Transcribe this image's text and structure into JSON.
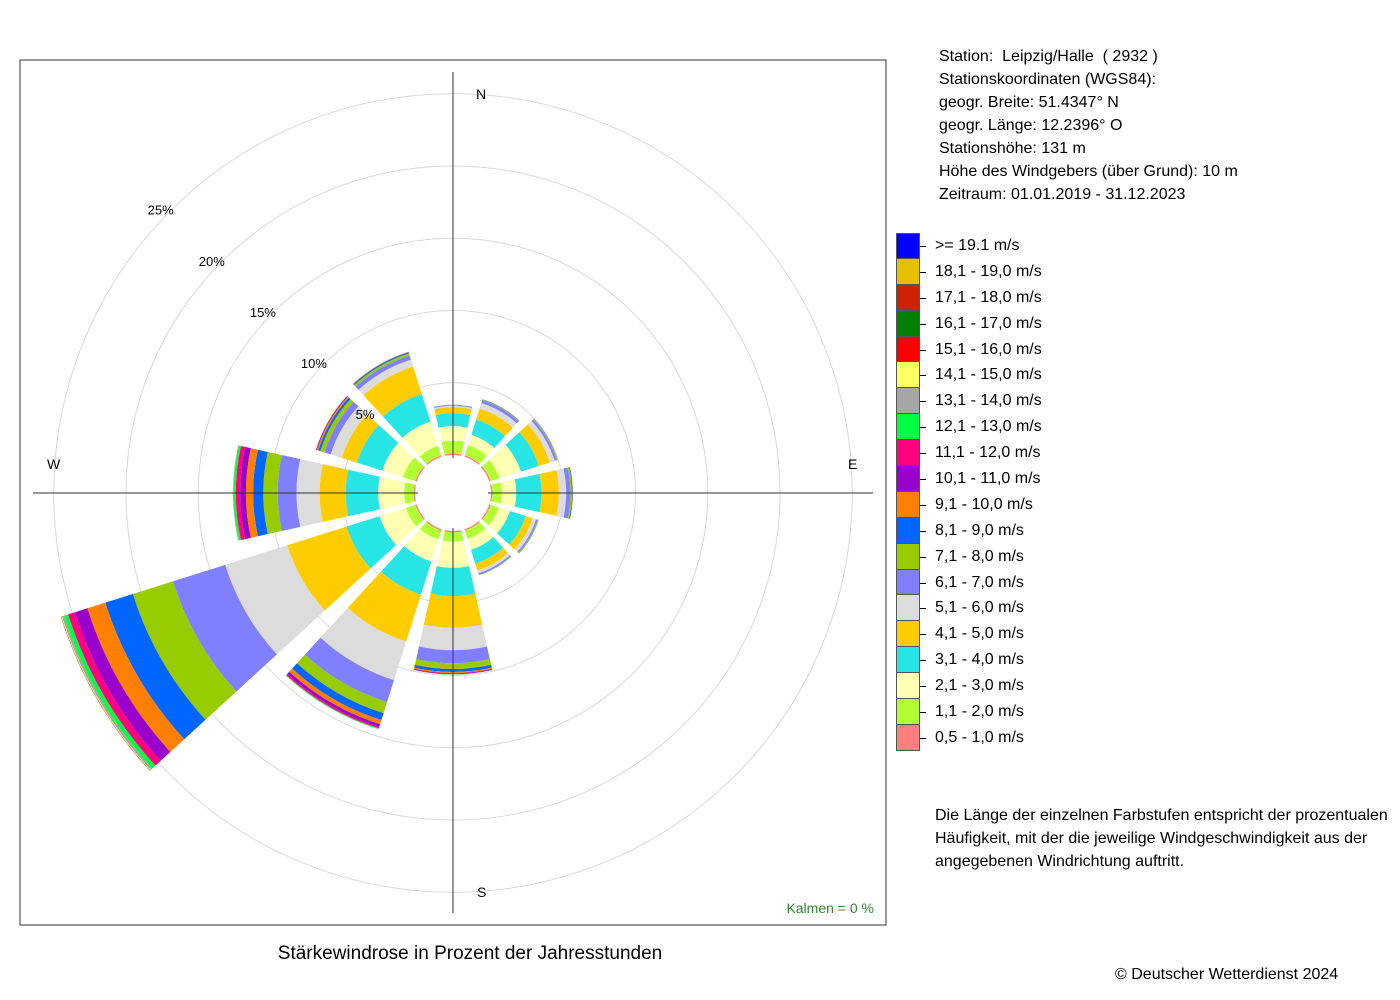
{
  "title": "Stärkewindrose in Prozent der Jahresstunden",
  "station_info": [
    "Station:  Leipzig/Halle  ( 2932 )",
    "Stationskoordinaten (WGS84):",
    "geogr. Breite: 51.4347° N",
    "geogr. Länge: 12.2396° O",
    "Stationshöhe: 131 m",
    "Höhe des Windgebers (über Grund): 10 m",
    "Zeitraum: 01.01.2019 - 31.12.2023"
  ],
  "note": "Die Länge der einzelnen Farbstufen entspricht der prozentualen Häufigkeit, mit der die jeweilige Windgeschwindigkeit aus der angegebenen Windrichtung auftritt.",
  "copyright": "© Deutscher Wetterdienst  2024",
  "calm": "Kalmen  =  0 %",
  "compass": {
    "n": "N",
    "e": "E",
    "s": "S",
    "w": "W"
  },
  "chart_data": {
    "type": "wind-rose",
    "radial_unit": "%",
    "radial_ticks": [
      5,
      10,
      15,
      20,
      25
    ],
    "radial_tick_labels": [
      "5%",
      "10%",
      "15%",
      "20%",
      "25%"
    ],
    "directions_deg": [
      0,
      30,
      60,
      90,
      120,
      150,
      180,
      210,
      240,
      270,
      300,
      330
    ],
    "speed_classes": [
      {
        "label": "0,5 - 1,0 m/s",
        "color": "#ff7f7f"
      },
      {
        "label": "1,1 - 2,0 m/s",
        "color": "#b2ff33"
      },
      {
        "label": "2,1 - 3,0 m/s",
        "color": "#ffffb2"
      },
      {
        "label": "3,1 - 4,0 m/s",
        "color": "#28e5e5"
      },
      {
        "label": "4,1 - 5,0 m/s",
        "color": "#ffcc00"
      },
      {
        "label": "5,1 - 6,0 m/s",
        "color": "#dcdcdc"
      },
      {
        "label": "6,1 - 7,0 m/s",
        "color": "#8080ff"
      },
      {
        "label": "7,1 - 8,0 m/s",
        "color": "#99cc00"
      },
      {
        "label": "8,1 - 9,0 m/s",
        "color": "#0066ff"
      },
      {
        "label": "9,1 - 10,0 m/s",
        "color": "#ff8000"
      },
      {
        "label": "10,1 - 11,0 m/s",
        "color": "#9900cc"
      },
      {
        "label": "11,1 - 12,0 m/s",
        "color": "#ff0080"
      },
      {
        "label": "12,1 - 13,0 m/s",
        "color": "#00ff40"
      },
      {
        "label": "13,1 - 14,0 m/s",
        "color": "#a6a6a6"
      },
      {
        "label": "14,1 - 15,0 m/s",
        "color": "#ffff66"
      },
      {
        "label": "15,1 - 16,0 m/s",
        "color": "#ff0000"
      },
      {
        "label": "16,1 - 17,0 m/s",
        "color": "#008000"
      },
      {
        "label": "17,1 - 18,0 m/s",
        "color": "#cc2200"
      },
      {
        "label": "18,1 - 19,0 m/s",
        "color": "#e6bf00"
      },
      {
        "label": ">= 19.1 m/s",
        "color": "#0000ff"
      }
    ],
    "frequencies_pct": [
      [
        0.1,
        0.9,
        1.0,
        0.9,
        0.4,
        0.1,
        0.05,
        0.02,
        0.01,
        0.0,
        0.0,
        0.0,
        0.0,
        0.0,
        0.0,
        0.0,
        0.0,
        0.0,
        0.0,
        0.0
      ],
      [
        0.1,
        0.75,
        0.75,
        1.1,
        0.8,
        0.4,
        0.2,
        0.05,
        0.02,
        0.01,
        0.0,
        0.0,
        0.0,
        0.0,
        0.0,
        0.0,
        0.0,
        0.0,
        0.0,
        0.0
      ],
      [
        0.1,
        0.65,
        1.55,
        1.3,
        0.8,
        0.35,
        0.15,
        0.05,
        0.02,
        0.0,
        0.0,
        0.0,
        0.0,
        0.0,
        0.0,
        0.0,
        0.0,
        0.0,
        0.0,
        0.0
      ],
      [
        0.1,
        0.65,
        1.0,
        1.75,
        1.2,
        0.5,
        0.3,
        0.1,
        0.05,
        0.02,
        0.0,
        0.0,
        0.0,
        0.0,
        0.0,
        0.0,
        0.0,
        0.0,
        0.0,
        0.0
      ],
      [
        0.1,
        0.6,
        0.8,
        1.15,
        0.5,
        0.25,
        0.1,
        0.05,
        0.02,
        0.0,
        0.0,
        0.0,
        0.0,
        0.0,
        0.0,
        0.0,
        0.0,
        0.0,
        0.0,
        0.0
      ],
      [
        0.1,
        0.6,
        0.8,
        1.0,
        0.5,
        0.2,
        0.1,
        0.03,
        0.01,
        0.0,
        0.0,
        0.0,
        0.0,
        0.0,
        0.0,
        0.0,
        0.0,
        0.0,
        0.0,
        0.0
      ],
      [
        0.1,
        0.65,
        1.8,
        1.95,
        2.2,
        1.55,
        0.9,
        0.4,
        0.2,
        0.1,
        0.05,
        0.02,
        0.01,
        0.0,
        0.0,
        0.0,
        0.0,
        0.0,
        0.0,
        0.0
      ],
      [
        0.1,
        0.65,
        1.6,
        2.4,
        3.4,
        2.8,
        1.6,
        0.8,
        0.5,
        0.3,
        0.2,
        0.1,
        0.05,
        0.02,
        0.01,
        0.0,
        0.0,
        0.0,
        0.0,
        0.0
      ],
      [
        0.1,
        0.7,
        1.9,
        2.4,
        4.3,
        4.5,
        3.8,
        2.9,
        2.0,
        1.3,
        0.9,
        0.5,
        0.3,
        0.15,
        0.05,
        0.02,
        0.01,
        0.0,
        0.0,
        0.0
      ],
      [
        0.1,
        0.65,
        1.8,
        2.25,
        1.8,
        1.6,
        1.3,
        1.0,
        0.7,
        0.5,
        0.4,
        0.3,
        0.15,
        0.05,
        0.02,
        0.0,
        0.0,
        0.0,
        0.0,
        0.0
      ],
      [
        0.1,
        0.9,
        1.5,
        1.85,
        1.1,
        0.8,
        0.45,
        0.3,
        0.15,
        0.1,
        0.05,
        0.02,
        0.01,
        0.0,
        0.0,
        0.0,
        0.0,
        0.0,
        0.0,
        0.0
      ],
      [
        0.1,
        0.7,
        1.75,
        2.0,
        2.0,
        0.5,
        0.3,
        0.15,
        0.08,
        0.03,
        0.01,
        0.0,
        0.0,
        0.0,
        0.0,
        0.0,
        0.0,
        0.0,
        0.0,
        0.0
      ]
    ]
  }
}
